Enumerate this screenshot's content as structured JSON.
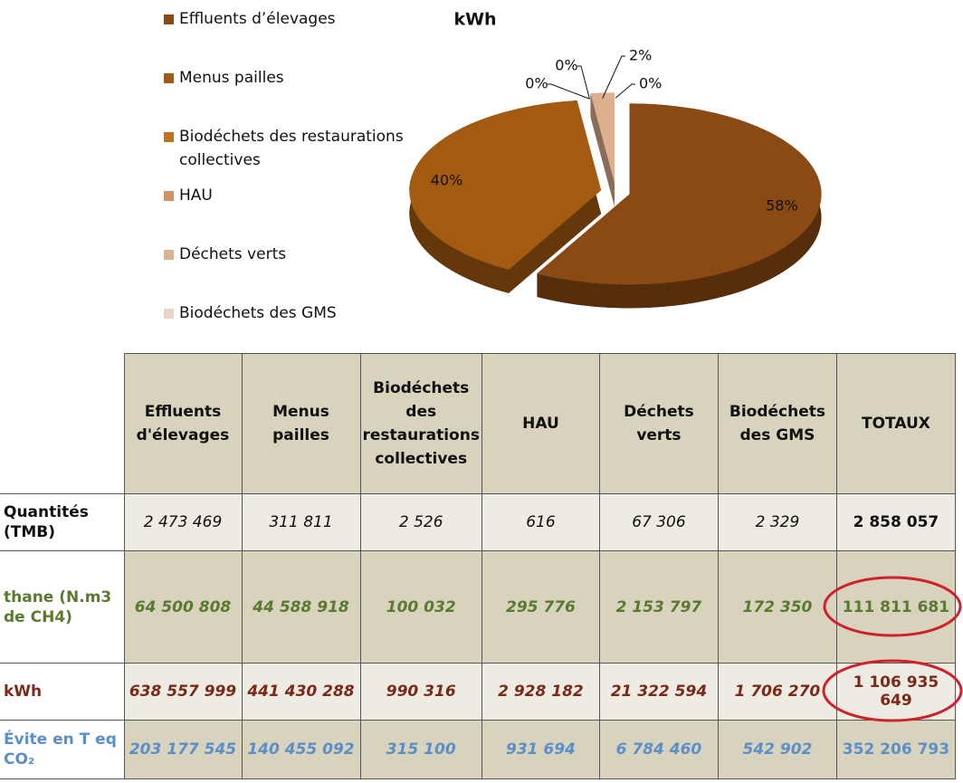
{
  "chart_data": {
    "type": "pie",
    "title": "kWh",
    "categories": [
      "Effluents d’élevages",
      "Menus pailles",
      "Biodéchets des restaurations collectives",
      "HAU",
      "Déchets verts",
      "Biodéchets des GMS"
    ],
    "values": [
      58,
      40,
      0,
      0,
      2,
      0
    ],
    "value_labels": [
      "58%",
      "40%",
      "0%",
      "0%",
      "2%",
      "0%"
    ],
    "colors": [
      "#8b4a14",
      "#a35b12",
      "#c0731f",
      "#d3935f",
      "#ddb08f",
      "#ebd3c6"
    ]
  },
  "table": {
    "columns": [
      "Effluents d'élevages",
      "Menus pailles",
      "Biodéchets des restaurations collectives",
      "HAU",
      "Déchets verts",
      "Biodéchets des GMS",
      "TOTAUX"
    ],
    "rows": [
      {
        "label": "Quantités (TMB)",
        "cells": [
          "2 473 469",
          "311 811",
          "2 526",
          "616",
          "67 306",
          "2 329",
          "2 858 057"
        ]
      },
      {
        "label": "thane (N.m3  de CH4)",
        "cells": [
          "64 500 808",
          "44 588 918",
          "100 032",
          "295 776",
          "2 153 797",
          "172 350",
          "111 811 681"
        ]
      },
      {
        "label": "kWh",
        "cells": [
          "638 557 999",
          "441 430 288",
          "990 316",
          "2 928 182",
          "21 322 594",
          "1 706 270",
          "1 106 935 649"
        ]
      },
      {
        "label": "Évite en T eq CO₂",
        "cells": [
          "203 177 545",
          "140 455 092",
          "315 100",
          "931 694",
          "6 784 460",
          "542 902",
          "352 206 793"
        ]
      }
    ]
  }
}
